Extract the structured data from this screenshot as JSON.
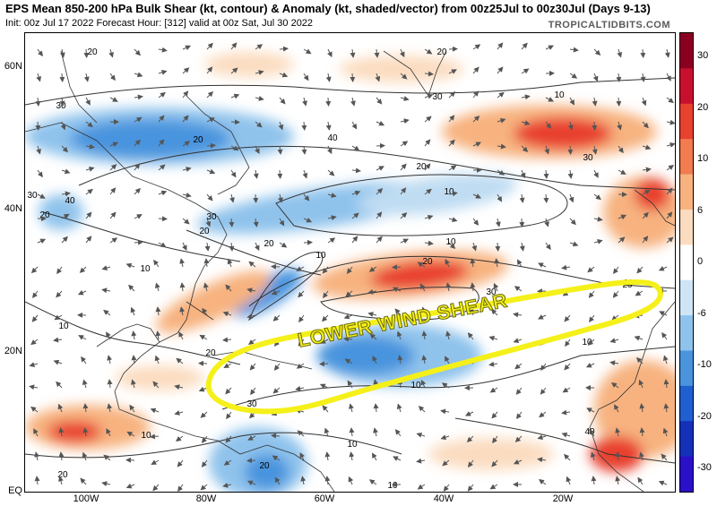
{
  "header": {
    "title": "EPS Mean 850-200 hPa Bulk Shear (kt, contour) & Anomaly (kt, shaded/vector) from 00z25Jul to 00z30Jul (Days 9-13)",
    "subtitle": "Init: 00z Jul 17 2022   Forecast Hour: [312]   valid at 00z Sat, Jul 30 2022",
    "credit": "TROPICALTIDBITS.COM"
  },
  "axes": {
    "lat_labels": [
      "60N",
      "40N",
      "20N",
      "EQ"
    ],
    "lon_labels": [
      "100W",
      "80W",
      "60W",
      "40W",
      "20W"
    ]
  },
  "colorbar": {
    "ticks": [
      "30",
      "20",
      "10",
      "6",
      "0",
      "-6",
      "-10",
      "-20",
      "-30"
    ],
    "colors": [
      "#8b0020",
      "#c8102e",
      "#e8412f",
      "#f27b4f",
      "#f7b27f",
      "#fbdcc0",
      "#ffffff",
      "#cfe5f5",
      "#8fc3ec",
      "#4a94de",
      "#1f5fd0",
      "#1530b8",
      "#2a10c8"
    ]
  },
  "annotation": {
    "text": "LOWER WIND SHEAR",
    "color": "#f5f019"
  },
  "contour_labels": [
    "20",
    "30",
    "20",
    "40",
    "30",
    "20",
    "20",
    "10",
    "30",
    "20",
    "10",
    "10",
    "20",
    "10",
    "20",
    "30",
    "10",
    "10",
    "10",
    "30",
    "20",
    "20",
    "40",
    "10",
    "20",
    "10",
    "10",
    "20",
    "30",
    "40",
    "30",
    "20",
    "20",
    "10"
  ]
}
